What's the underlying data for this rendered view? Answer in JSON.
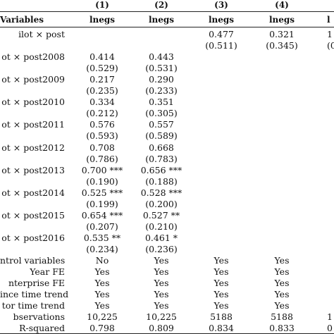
{
  "header": {
    "col_numbers": [
      "(1)",
      "(2)",
      "(3)",
      "(4)",
      ""
    ],
    "variables_label": "Variables",
    "dep_vars": [
      "lnegs",
      "lnegs",
      "lnegs",
      "lnegs",
      "l"
    ]
  },
  "rows": [
    {
      "label": "ilot × post",
      "c1": "",
      "c2": "",
      "c3": "0.477",
      "c4": "0.321",
      "c5": "1"
    },
    {
      "label": "",
      "c1": "",
      "c2": "",
      "c3": "(0.511)",
      "c4": "(0.345)",
      "c5": "(0"
    },
    {
      "label": "ot × post2008",
      "c1": "0.414",
      "c2": "0.443",
      "c3": "",
      "c4": "",
      "c5": ""
    },
    {
      "label": "",
      "c1": "(0.529)",
      "c2": "(0.531)",
      "c3": "",
      "c4": "",
      "c5": ""
    },
    {
      "label": "ot × post2009",
      "c1": "0.217",
      "c2": "0.290",
      "c3": "",
      "c4": "",
      "c5": ""
    },
    {
      "label": "",
      "c1": "(0.235)",
      "c2": "(0.233)",
      "c3": "",
      "c4": "",
      "c5": ""
    },
    {
      "label": "ot × post2010",
      "c1": "0.334",
      "c2": "0.351",
      "c3": "",
      "c4": "",
      "c5": ""
    },
    {
      "label": "",
      "c1": "(0.212)",
      "c2": "(0.305)",
      "c3": "",
      "c4": "",
      "c5": ""
    },
    {
      "label": "ot × post2011",
      "c1": "0.576",
      "c2": "0.557",
      "c3": "",
      "c4": "",
      "c5": ""
    },
    {
      "label": "",
      "c1": "(0.593)",
      "c2": "(0.589)",
      "c3": "",
      "c4": "",
      "c5": ""
    },
    {
      "label": "ot × post2012",
      "c1": "0.708",
      "c2": "0.668",
      "c3": "",
      "c4": "",
      "c5": ""
    },
    {
      "label": "",
      "c1": "(0.786)",
      "c2": "(0.783)",
      "c3": "",
      "c4": "",
      "c5": ""
    },
    {
      "label": "ot × post2013",
      "c1": "0.700 ***",
      "c2": "0.656 ***",
      "c3": "",
      "c4": "",
      "c5": ""
    },
    {
      "label": "",
      "c1": "(0.190)",
      "c2": "(0.188)",
      "c3": "",
      "c4": "",
      "c5": ""
    },
    {
      "label": "ot × post2014",
      "c1": "0.525 ***",
      "c2": "0.528 ***",
      "c3": "",
      "c4": "",
      "c5": ""
    },
    {
      "label": "",
      "c1": "(0.199)",
      "c2": "(0.200)",
      "c3": "",
      "c4": "",
      "c5": ""
    },
    {
      "label": "ot × post2015",
      "c1": "0.654 ***",
      "c2": "0.527 **",
      "c3": "",
      "c4": "",
      "c5": ""
    },
    {
      "label": "",
      "c1": "(0.207)",
      "c2": "(0.210)",
      "c3": "",
      "c4": "",
      "c5": ""
    },
    {
      "label": "ot × post2016",
      "c1": "0.535 **",
      "c2": "0.461 *",
      "c3": "",
      "c4": "",
      "c5": ""
    },
    {
      "label": "",
      "c1": "(0.234)",
      "c2": "(0.236)",
      "c3": "",
      "c4": "",
      "c5": ""
    },
    {
      "label": "ntrol variables",
      "c1": "No",
      "c2": "Yes",
      "c3": "Yes",
      "c4": "Yes",
      "c5": ""
    },
    {
      "label": "Year FE",
      "c1": "Yes",
      "c2": "Yes",
      "c3": "Yes",
      "c4": "Yes",
      "c5": ""
    },
    {
      "label": "nterprise FE",
      "c1": "Yes",
      "c2": "Yes",
      "c3": "Yes",
      "c4": "Yes",
      "c5": ""
    },
    {
      "label": "ince time trend",
      "c1": "Yes",
      "c2": "Yes",
      "c3": "Yes",
      "c4": "Yes",
      "c5": ""
    },
    {
      "label": "tor time trend",
      "c1": "Yes",
      "c2": "Yes",
      "c3": "Yes",
      "c4": "Yes",
      "c5": ""
    },
    {
      "label": "bservations",
      "c1": "10,225",
      "c2": "10,225",
      "c3": "5188",
      "c4": "5188",
      "c5": "1"
    },
    {
      "label": "R-squared",
      "c1": "0.798",
      "c2": "0.809",
      "c3": "0.834",
      "c4": "0.833",
      "c5": "0"
    }
  ]
}
